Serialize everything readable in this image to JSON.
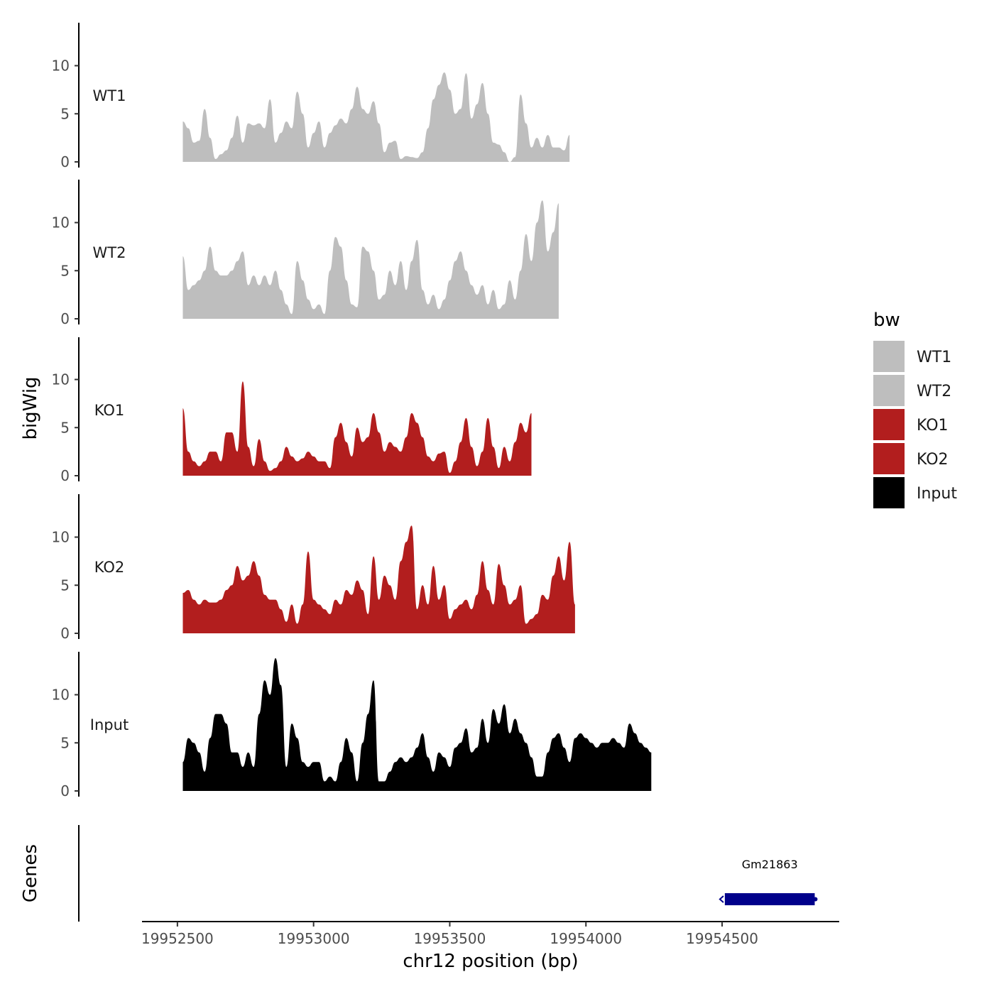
{
  "chart_data": {
    "type": "area",
    "title": "",
    "ylabel": "bigWig",
    "xlabel": "chr12 position (bp)",
    "genes_label": "Genes",
    "xlim": [
      19952370,
      19954930
    ],
    "ylim": [
      0,
      14.5
    ],
    "x_ticks": [
      19952500,
      19953000,
      19953500,
      19954000,
      19954500
    ],
    "x_tick_labels": [
      "19952500",
      "19953000",
      "19953500",
      "19954000",
      "19954500"
    ],
    "y_ticks": [
      0,
      5,
      10
    ],
    "y_tick_labels": [
      "0",
      "5",
      "10"
    ],
    "x_start": 19952520,
    "x_step": 20,
    "legend": {
      "title": "bw",
      "entries": [
        {
          "label": "WT1",
          "color": "#bebebe"
        },
        {
          "label": "WT2",
          "color": "#bebebe"
        },
        {
          "label": "KO1",
          "color": "#b21e1e"
        },
        {
          "label": "KO2",
          "color": "#b21e1e"
        },
        {
          "label": "Input",
          "color": "#000000"
        }
      ]
    },
    "series": [
      {
        "name": "WT1",
        "color": "#bebebe",
        "values": [
          4.2,
          3.5,
          2,
          2.2,
          5.5,
          2.5,
          0.3,
          0.8,
          1.2,
          2.5,
          4.8,
          2,
          4,
          3.8,
          4,
          3.5,
          6.5,
          2,
          3,
          4.2,
          3.5,
          7.3,
          5,
          1.5,
          3,
          4.2,
          1.5,
          3,
          3.8,
          4.5,
          4,
          5.5,
          7.8,
          5.5,
          5,
          6.3,
          4,
          1,
          2,
          2.2,
          0.3,
          0.6,
          0.5,
          0.4,
          1,
          3.5,
          6.5,
          8,
          9.3,
          7.5,
          5,
          5.5,
          9.2,
          4.5,
          6,
          8.2,
          5,
          2,
          1.8,
          1,
          0,
          0.5,
          7,
          4,
          1.5,
          2.5,
          1.5,
          2.8,
          1.5,
          1.5,
          1.2,
          2.8
        ]
      },
      {
        "name": "WT2",
        "color": "#bebebe",
        "values": [
          6.5,
          3,
          3.5,
          4,
          5,
          7.5,
          5,
          4.5,
          4.5,
          5,
          6,
          7,
          3.5,
          4.5,
          3.5,
          4.5,
          3.5,
          5,
          3,
          1.5,
          0.5,
          6,
          4,
          2,
          1,
          1.5,
          0.5,
          5,
          8.5,
          7.5,
          4,
          1.5,
          1.2,
          7.5,
          7,
          5,
          2,
          2.5,
          5,
          3.5,
          6,
          3,
          6,
          8.2,
          3,
          1.5,
          2.5,
          1,
          2,
          4,
          6,
          7,
          5,
          3.5,
          2.5,
          3.5,
          1.5,
          3,
          1,
          1.5,
          4,
          2,
          5,
          8.8,
          6,
          10,
          12.3,
          7,
          9,
          12
        ]
      },
      {
        "name": "KO1",
        "color": "#b21e1e",
        "values": [
          7,
          2.5,
          1.5,
          1,
          1.5,
          2.5,
          2.5,
          1.5,
          4.5,
          4.5,
          2.5,
          9.8,
          3,
          1,
          3.8,
          1.5,
          0.5,
          0.8,
          1.5,
          3,
          2,
          1.5,
          1.8,
          2.5,
          2,
          1.5,
          1.5,
          0.8,
          4,
          5.5,
          3.5,
          2,
          5,
          3.5,
          4,
          6.5,
          4.5,
          2.5,
          3.5,
          3,
          2.5,
          4,
          6.5,
          5.5,
          4,
          2,
          1.5,
          2.3,
          2.5,
          0.3,
          1.5,
          3.5,
          6,
          3,
          1,
          2.5,
          6,
          3,
          0.8,
          3,
          1.5,
          3.5,
          5.5,
          4.5,
          6.5
        ]
      },
      {
        "name": "KO2",
        "color": "#b21e1e",
        "values": [
          4.2,
          4.5,
          3.5,
          3,
          3.5,
          3.2,
          3.2,
          3.5,
          4.5,
          5,
          7,
          5.5,
          6,
          7.5,
          6,
          4,
          3.5,
          3.5,
          2.5,
          1.2,
          3,
          1,
          3,
          8.5,
          3.5,
          3,
          2.5,
          2,
          3.5,
          3,
          4.5,
          4,
          5.5,
          4.5,
          2,
          8,
          3.5,
          6,
          5,
          3.5,
          7.5,
          9.5,
          11.2,
          2.5,
          5,
          3,
          7,
          3.5,
          5,
          1.5,
          2.5,
          3,
          3.5,
          2.5,
          4,
          7.5,
          4.5,
          3,
          7.2,
          5,
          3,
          3.5,
          5,
          1,
          1.5,
          2,
          4,
          3.5,
          6,
          8,
          5.5,
          9.5,
          3
        ]
      },
      {
        "name": "Input",
        "color": "#000000",
        "values": [
          3,
          5.5,
          5,
          4,
          2,
          5.5,
          8,
          8,
          7,
          4,
          4,
          2.5,
          4,
          2.5,
          8,
          11.5,
          10,
          13.8,
          11,
          2.5,
          7,
          5.5,
          3,
          2.5,
          3,
          3,
          1,
          1.5,
          1,
          3,
          5.5,
          4,
          1,
          5,
          8,
          11.5,
          1,
          1,
          2,
          3,
          3.5,
          3,
          3.5,
          4.5,
          6,
          3.5,
          2,
          4,
          3.5,
          2.5,
          4.5,
          5,
          6.5,
          4,
          4.5,
          7.5,
          5,
          8.5,
          7,
          9,
          6,
          7.5,
          6,
          5,
          3.5,
          1.5,
          1.5,
          4,
          5.5,
          6,
          4.5,
          3,
          5.5,
          6,
          5.5,
          5,
          4.5,
          5,
          5,
          5.5,
          5,
          4.5,
          7,
          6,
          5,
          4.5,
          4
        ]
      }
    ],
    "genes": [
      {
        "name": "Gm21863",
        "start": 19954510,
        "end": 19954840,
        "strand": "-",
        "color": "#00008b"
      }
    ]
  }
}
